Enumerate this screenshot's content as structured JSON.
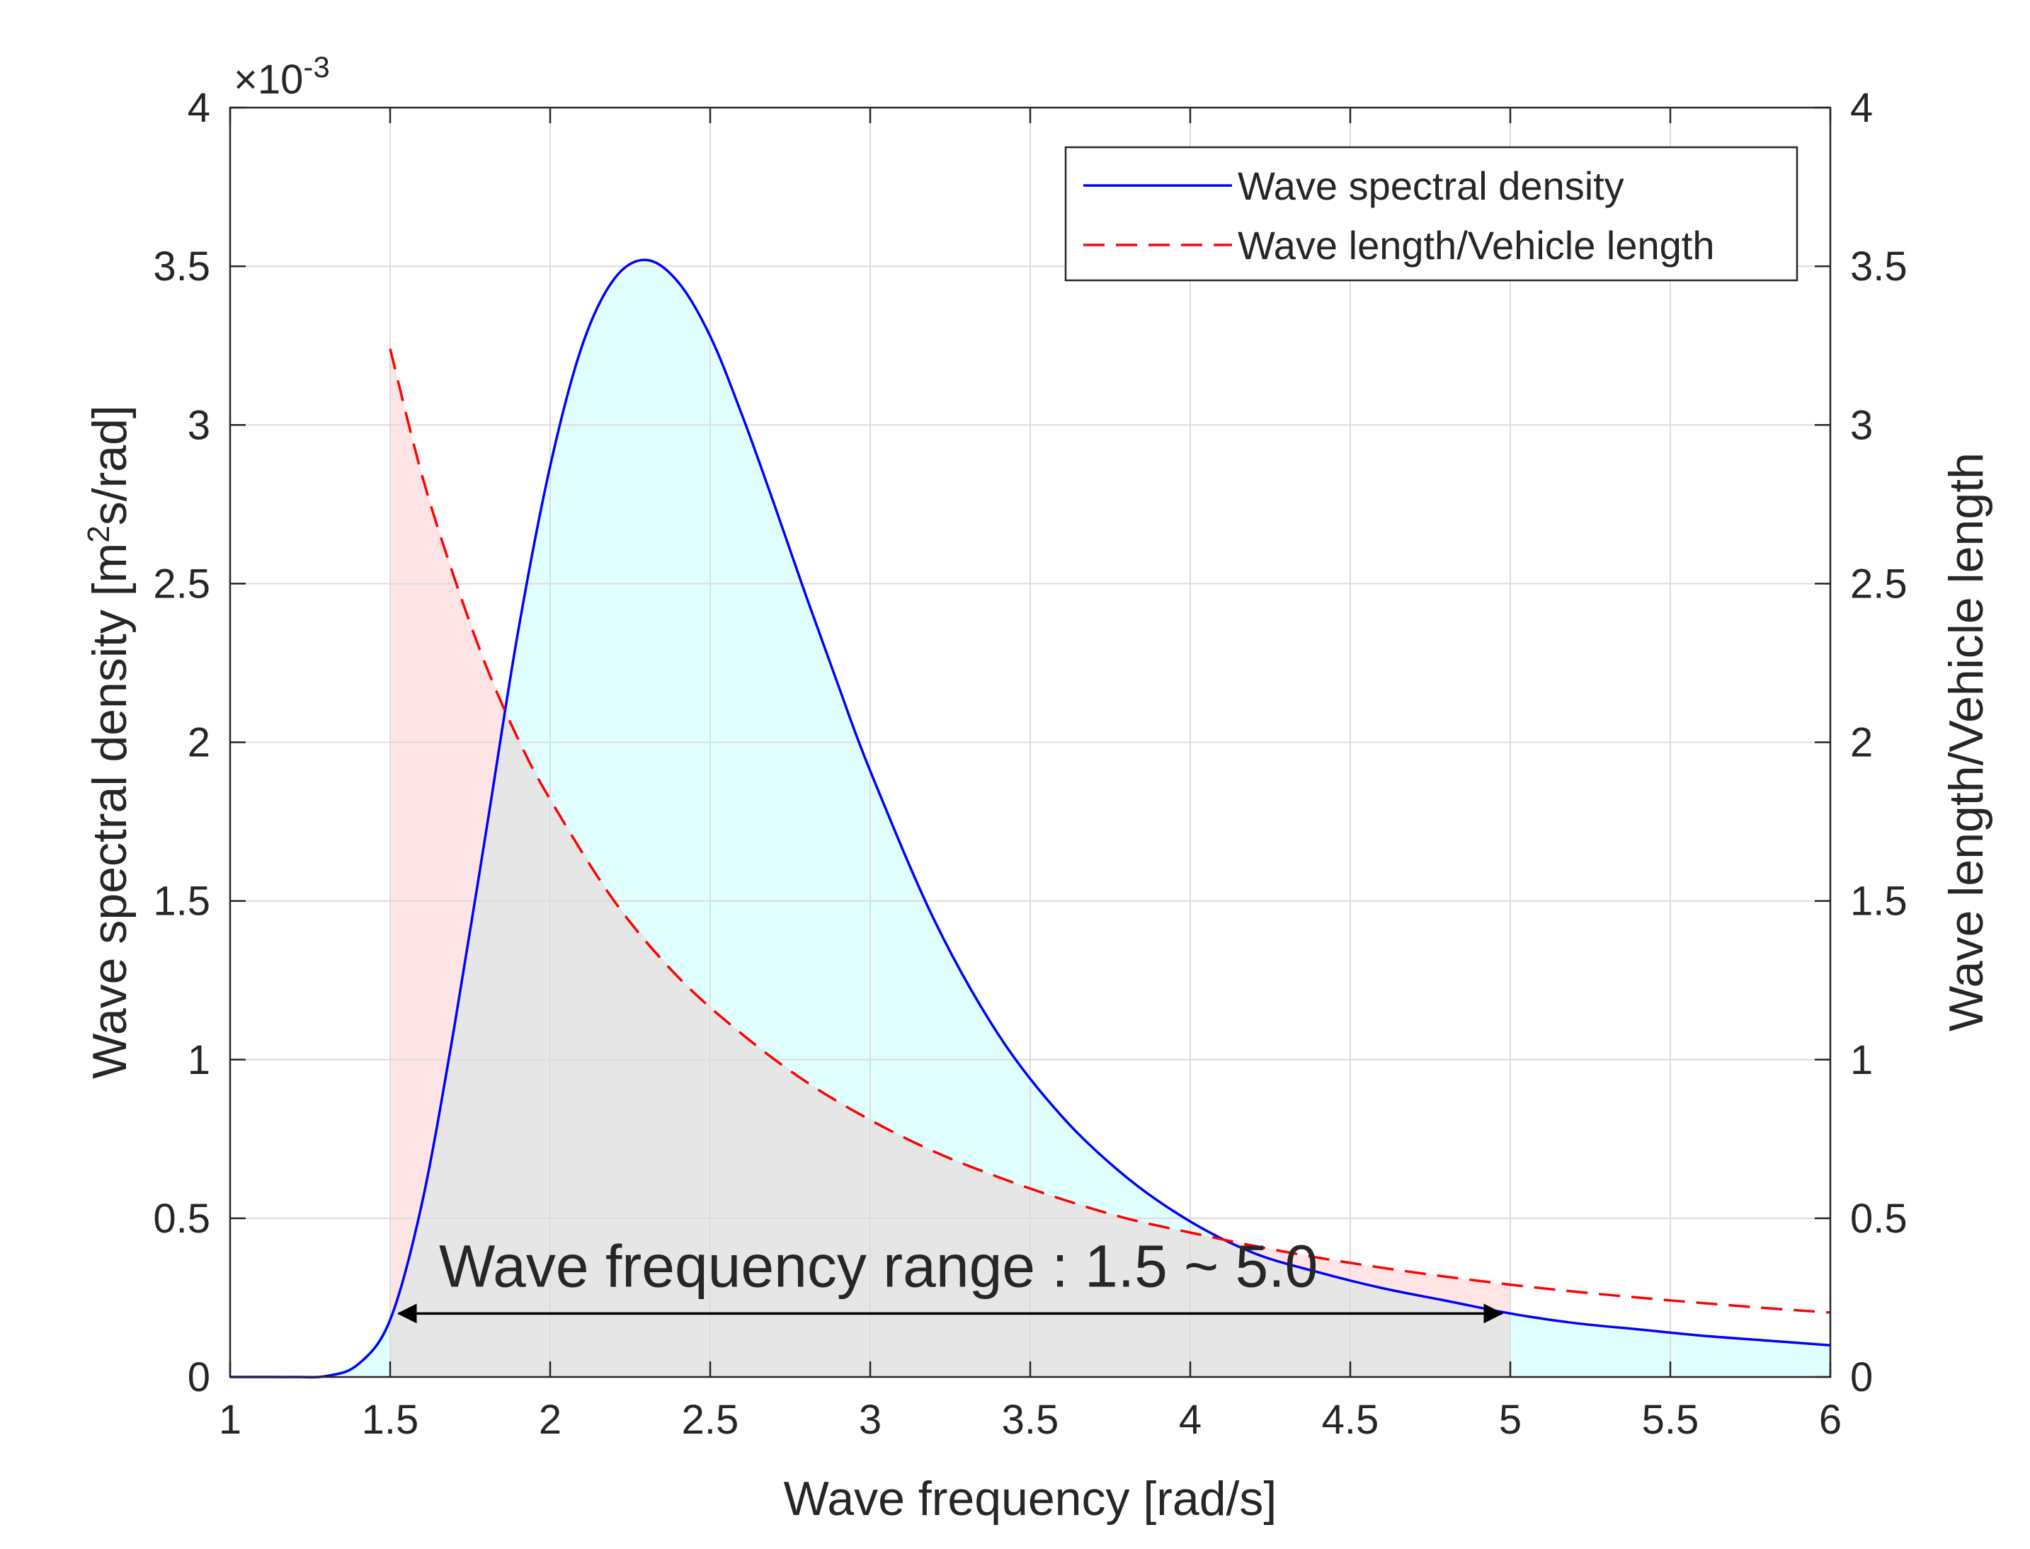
{
  "chart_data": {
    "type": "line",
    "xlabel": "Wave frequency [rad/s]",
    "ylabel_left_prefix": "Wave spectral density [m",
    "ylabel_left_sup": "2",
    "ylabel_left_suffix": "s/rad]",
    "ylabel_right": "Wave length/Vehicle length",
    "exponent_prefix": "×10",
    "exponent_power": "-3",
    "xlim": [
      1,
      6
    ],
    "ylim_left": [
      0,
      4
    ],
    "ylim_right": [
      0,
      4
    ],
    "x_ticks": [
      "1",
      "1.5",
      "2",
      "2.5",
      "3",
      "3.5",
      "4",
      "4.5",
      "5",
      "5.5",
      "6"
    ],
    "y_ticks_left": [
      "0",
      "0.5",
      "1",
      "1.5",
      "2",
      "2.5",
      "3",
      "3.5",
      "4"
    ],
    "y_ticks_right": [
      "0",
      "0.5",
      "1",
      "1.5",
      "2",
      "2.5",
      "3",
      "3.5",
      "4"
    ],
    "grid": true,
    "legend_position": "top-right",
    "series": [
      {
        "name": "Wave spectral density",
        "axis": "left",
        "color": "#0000ff",
        "style": "solid",
        "units_scale": "x10^-3",
        "x": [
          1.0,
          1.1,
          1.2,
          1.3,
          1.4,
          1.5,
          1.6,
          1.7,
          1.8,
          1.9,
          2.0,
          2.1,
          2.2,
          2.3,
          2.4,
          2.5,
          2.6,
          2.7,
          2.8,
          2.9,
          3.0,
          3.2,
          3.4,
          3.6,
          3.8,
          4.0,
          4.2,
          4.4,
          4.6,
          4.8,
          5.0,
          5.2,
          5.4,
          5.6,
          5.8,
          6.0
        ],
        "values": [
          0.0,
          0.0,
          0.0,
          0.003,
          0.04,
          0.18,
          0.55,
          1.1,
          1.72,
          2.35,
          2.87,
          3.25,
          3.46,
          3.52,
          3.45,
          3.28,
          3.03,
          2.75,
          2.46,
          2.18,
          1.91,
          1.44,
          1.08,
          0.82,
          0.63,
          0.49,
          0.39,
          0.33,
          0.28,
          0.24,
          0.2,
          0.17,
          0.15,
          0.13,
          0.115,
          0.1
        ]
      },
      {
        "name": "Wave length/Vehicle length",
        "axis": "right",
        "color": "#ff0000",
        "style": "dashed",
        "x": [
          1.5,
          1.6,
          1.7,
          1.8,
          1.9,
          2.0,
          2.2,
          2.4,
          2.6,
          2.8,
          3.0,
          3.2,
          3.4,
          3.6,
          3.8,
          4.0,
          4.2,
          4.4,
          4.6,
          4.8,
          5.0,
          5.2,
          5.4,
          5.6,
          5.8,
          6.0
        ],
        "values": [
          3.24,
          2.84,
          2.52,
          2.24,
          2.01,
          1.82,
          1.5,
          1.26,
          1.08,
          0.93,
          0.81,
          0.71,
          0.63,
          0.56,
          0.5,
          0.455,
          0.413,
          0.376,
          0.344,
          0.316,
          0.291,
          0.269,
          0.25,
          0.233,
          0.217,
          0.203
        ]
      }
    ],
    "shaded_regions": [
      {
        "name": "cyan-fill",
        "description_key": "under spectral density",
        "color": "#e0ffff"
      },
      {
        "name": "pink-fill",
        "description_key": "under wave length ratio",
        "color": "#ffe4e6"
      },
      {
        "name": "gray-fill",
        "description_key": "overlap within range",
        "color": "#e6e6e6"
      }
    ],
    "annotation": {
      "text": "Wave frequency range : 1.5 ~ 5.0",
      "x_start": 1.5,
      "x_end": 5.0,
      "y_right": 0.2
    }
  }
}
